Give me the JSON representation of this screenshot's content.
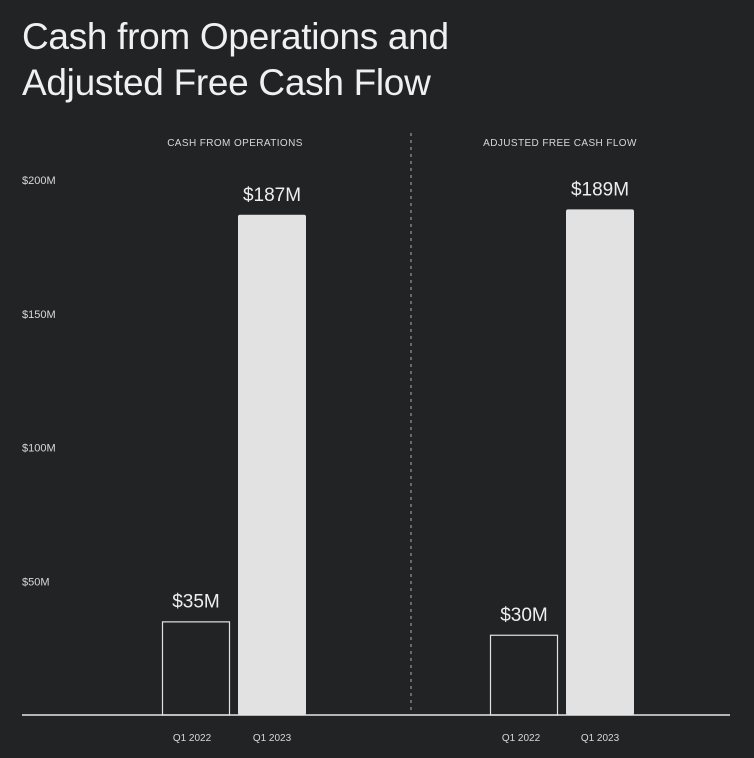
{
  "title_lines": [
    "Cash from Operations and",
    "Adjusted Free Cash Flow"
  ],
  "chart_data": {
    "type": "bar",
    "y_ticks": [
      {
        "value": 50,
        "label": "$50M"
      },
      {
        "value": 100,
        "label": "$100M"
      },
      {
        "value": 150,
        "label": "$150M"
      },
      {
        "value": 200,
        "label": "$200M"
      }
    ],
    "ylim": [
      0,
      200
    ],
    "grid": false,
    "panels": [
      {
        "title": "CASH FROM OPERATIONS",
        "categories": [
          "Q1 2022",
          "Q1 2023"
        ],
        "values": [
          35,
          187
        ],
        "value_labels": [
          "$35M",
          "$187M"
        ],
        "bar_styles": [
          "outline",
          "filled"
        ]
      },
      {
        "title": "ADJUSTED FREE CASH FLOW",
        "categories": [
          "Q1 2022",
          "Q1 2023"
        ],
        "values": [
          30,
          189
        ],
        "value_labels": [
          "$30M",
          "$189M"
        ],
        "bar_styles": [
          "outline",
          "filled"
        ]
      }
    ]
  },
  "colors": {
    "background": "#222324",
    "filled_bar": "#e2e2e2",
    "outline_bar": "#e2e2e2",
    "text": "#d8d8d8"
  }
}
